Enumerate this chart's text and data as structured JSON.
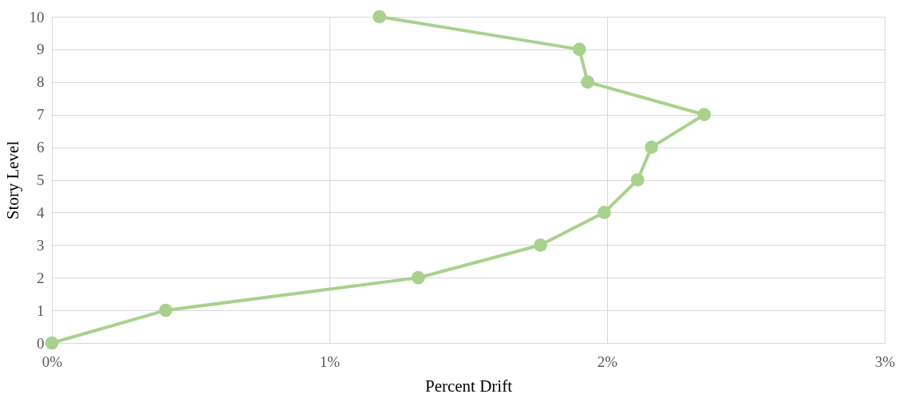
{
  "chart_data": {
    "type": "line",
    "xlabel": "Percent Drift",
    "ylabel": "Story Level",
    "x": [
      0,
      0.41,
      1.32,
      1.76,
      1.99,
      2.11,
      2.16,
      2.35,
      1.93,
      1.9,
      1.18
    ],
    "series": [
      {
        "color": "#a9d18e",
        "values": [
          0,
          1,
          2,
          3,
          4,
          5,
          6,
          7,
          8,
          9,
          10
        ]
      }
    ],
    "xlim": [
      0,
      3
    ],
    "xticks": [
      {
        "value": 0,
        "label": "0%"
      },
      {
        "value": 1,
        "label": "1%"
      },
      {
        "value": 2,
        "label": "2%"
      },
      {
        "value": 3,
        "label": "3%"
      }
    ],
    "ylim": [
      0,
      10
    ],
    "yticks": [
      0,
      1,
      2,
      3,
      4,
      5,
      6,
      7,
      8,
      9,
      10
    ],
    "grid": true,
    "marker": "circle",
    "line_style": "solid"
  }
}
